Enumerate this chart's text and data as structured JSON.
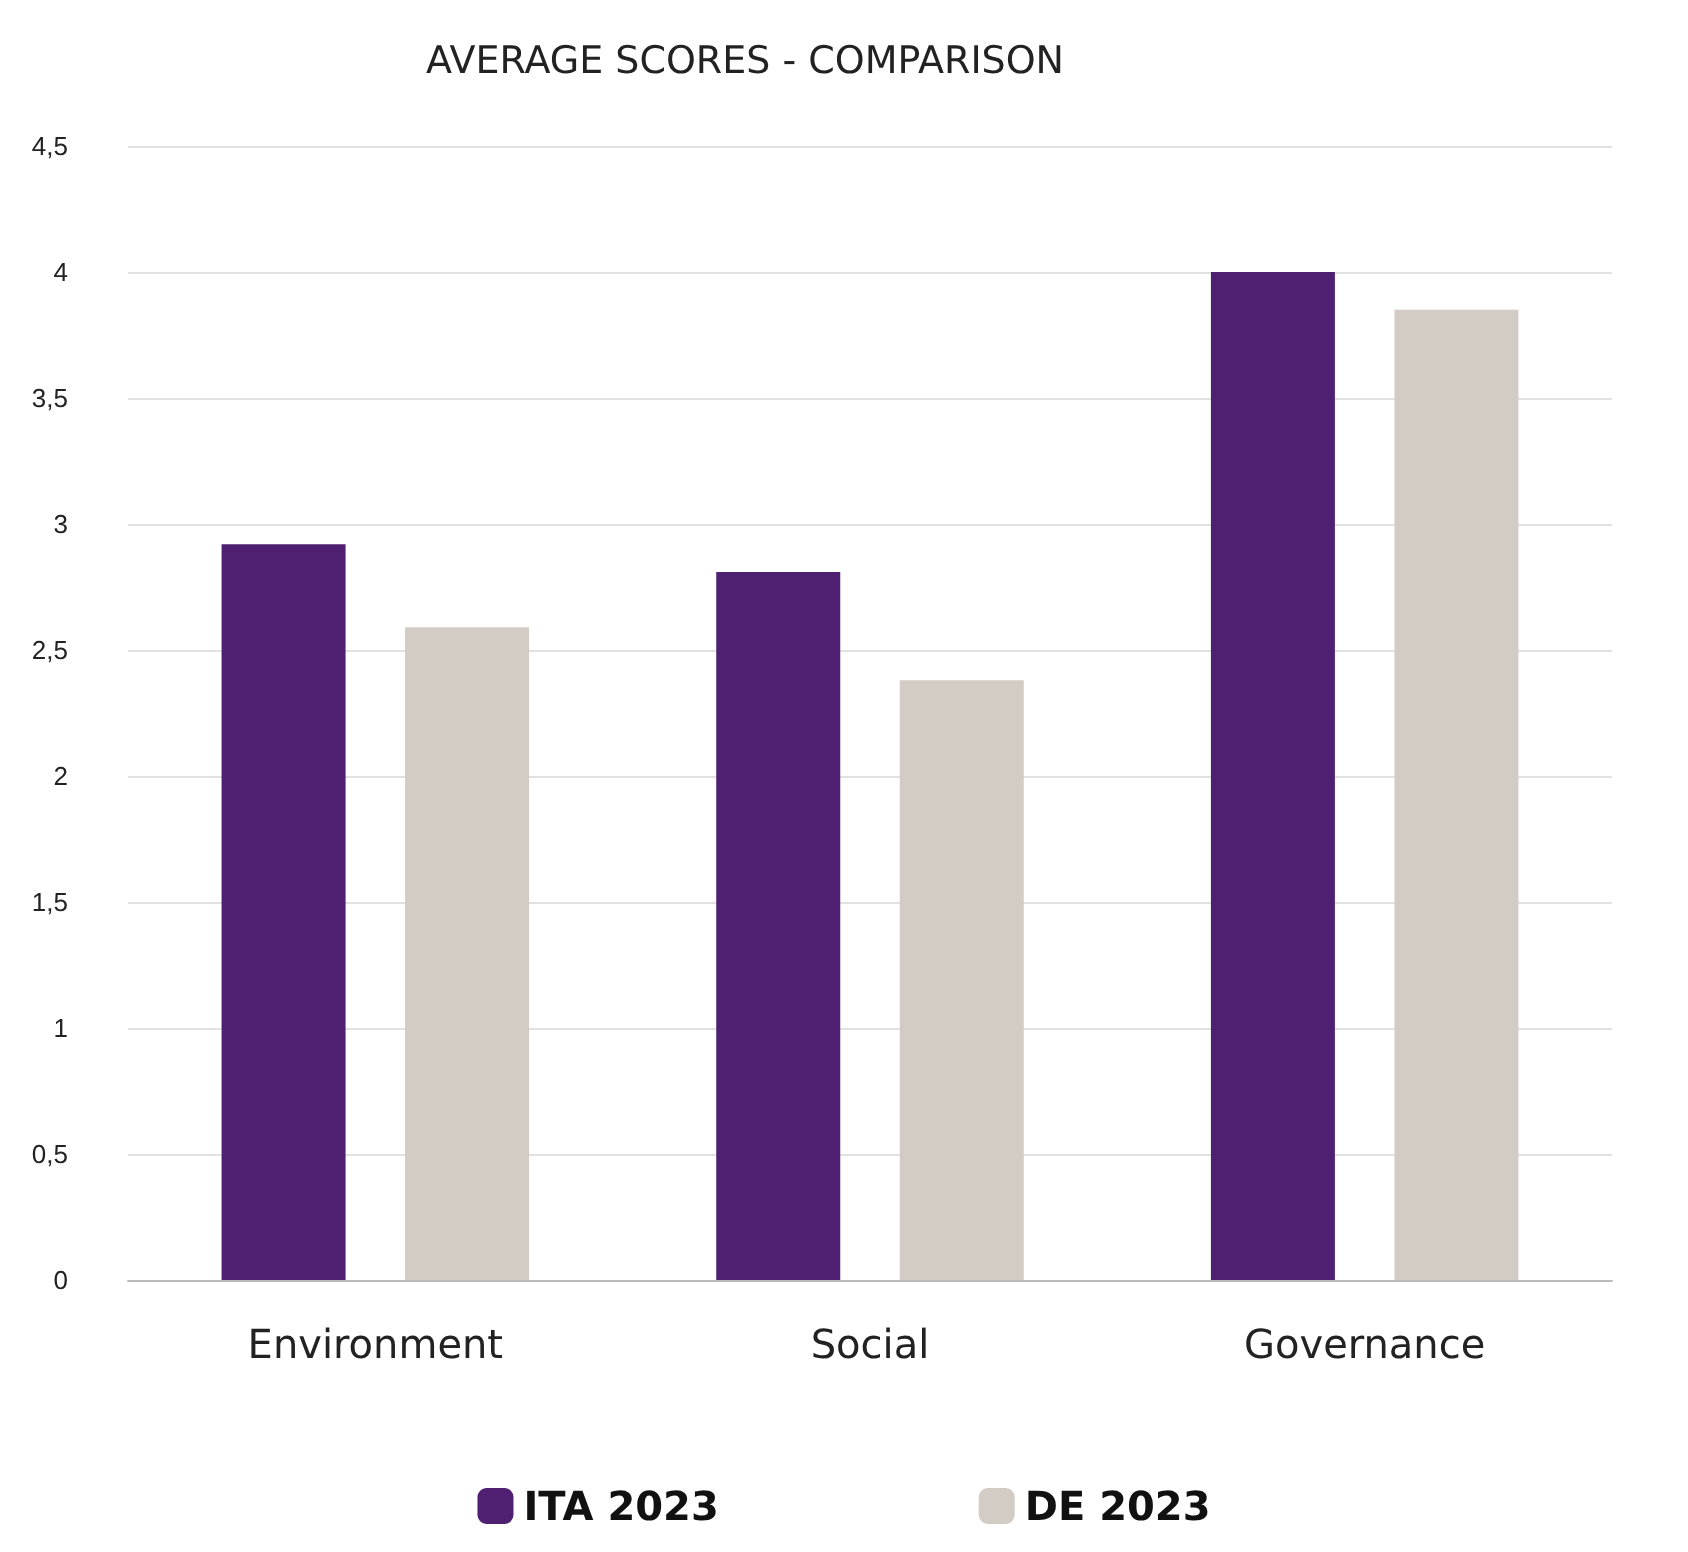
{
  "chart_data": {
    "type": "bar",
    "title": "AVERAGE SCORES - COMPARISON",
    "categories": [
      "Environment",
      "Social",
      "Governance"
    ],
    "series": [
      {
        "name": "ITA 2023",
        "color": "#4f1f72",
        "values": [
          2.92,
          2.81,
          4.0
        ]
      },
      {
        "name": "DE 2023",
        "color": "#d3ccc5",
        "values": [
          2.59,
          2.38,
          3.85
        ]
      }
    ],
    "ylim": [
      0,
      4.5
    ],
    "yticks": [
      0,
      {
        "value": 0.5,
        "label": "0,5"
      },
      1,
      {
        "value": 1.5,
        "label": "1,5"
      },
      2,
      {
        "value": 2.5,
        "label": "2,5"
      },
      3,
      {
        "value": 3.5,
        "label": "3,5"
      },
      4,
      {
        "value": 4.5,
        "label": "4,5"
      }
    ],
    "grid": "y",
    "legend": "bottom"
  }
}
